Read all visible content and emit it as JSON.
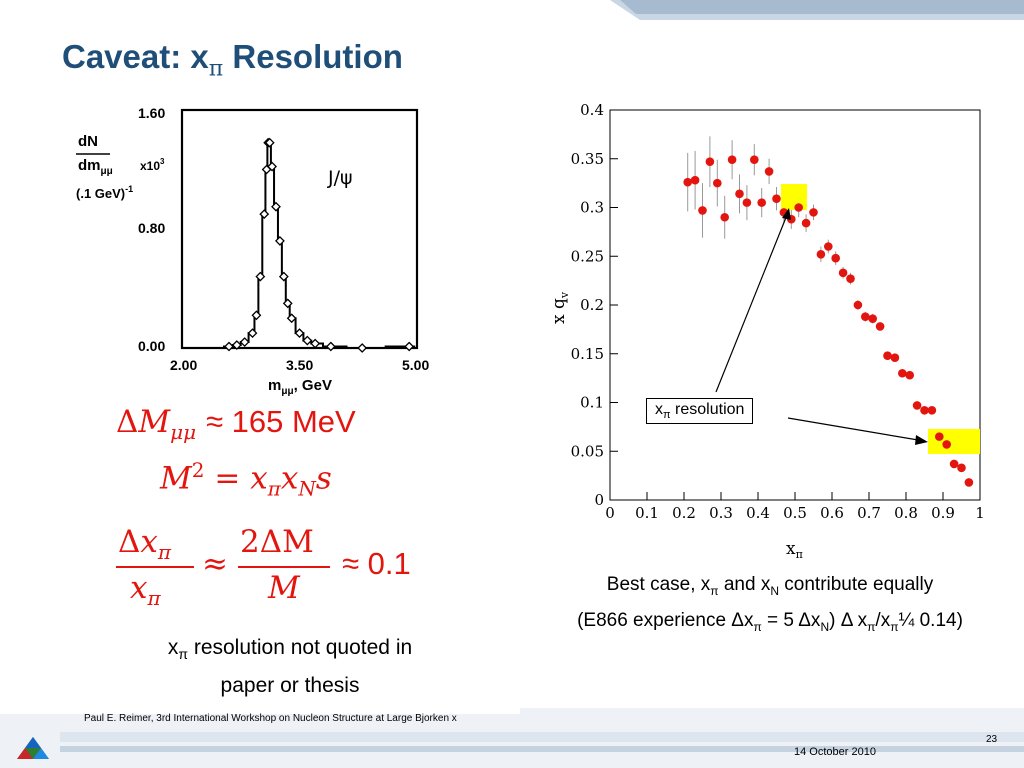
{
  "title": {
    "prefix": "Caveat:  x",
    "sub": "π",
    "suffix": " Resolution"
  },
  "left_plot": {
    "y_ticks": [
      "1.60",
      "0.80",
      "0.00"
    ],
    "x_ticks": [
      "2.00",
      "3.50",
      "5.00"
    ],
    "y_label_1": "dN",
    "y_label_2": "dm",
    "y_label_2_sub": "μμ",
    "y_label_3": "(.1  GeV)",
    "y_label_3_sup": "-1",
    "y_scale": "x10",
    "y_scale_sup": "3",
    "x_label": "m",
    "x_label_sub": "μμ",
    "x_label_unit": ",  GeV",
    "annotation": "J/ψ"
  },
  "left_chart_data": {
    "type": "line",
    "x": [
      2.6,
      2.7,
      2.8,
      2.9,
      2.95,
      3.0,
      3.05,
      3.08,
      3.1,
      3.12,
      3.15,
      3.2,
      3.25,
      3.3,
      3.35,
      3.4,
      3.5,
      3.6,
      3.7,
      3.9,
      4.3,
      4.9
    ],
    "values": [
      0.01,
      0.02,
      0.04,
      0.1,
      0.22,
      0.48,
      0.9,
      1.2,
      1.38,
      1.38,
      1.22,
      0.95,
      0.72,
      0.48,
      0.3,
      0.2,
      0.1,
      0.05,
      0.03,
      0.01,
      0.0,
      0.01
    ],
    "xlim": [
      2.0,
      5.0
    ],
    "ylim": [
      0.0,
      1.6
    ]
  },
  "equations": {
    "eq1_delta": "Δ",
    "eq1_M": "M",
    "eq1_sub": "μμ",
    "eq1_rhs": "≈ 165 MeV",
    "eq2_lhs": "M",
    "eq2_sup": "2",
    "eq2_eq": "=",
    "eq2_x1": "x",
    "eq2_x1_sub": "π",
    "eq2_x2": "x",
    "eq2_x2_sub": "N",
    "eq2_s": "s",
    "eq3_num_delta": "Δ",
    "eq3_num": "x",
    "eq3_num_sub": "π",
    "eq3_den": "x",
    "eq3_den_sub": "π",
    "eq3_approx1": "≈",
    "eq3_num2": "2ΔM",
    "eq3_den2": "M",
    "eq3_rhs": "≈ 0.1"
  },
  "left_note": {
    "line1_prefix": "x",
    "line1_sub": "π",
    "line1_suffix": " resolution not quoted in",
    "line2": "paper or thesis"
  },
  "chart_data": {
    "type": "scatter",
    "x": [
      0.21,
      0.23,
      0.25,
      0.27,
      0.29,
      0.31,
      0.33,
      0.35,
      0.37,
      0.39,
      0.41,
      0.43,
      0.45,
      0.47,
      0.49,
      0.51,
      0.53,
      0.55,
      0.57,
      0.59,
      0.61,
      0.63,
      0.65,
      0.67,
      0.69,
      0.71,
      0.73,
      0.75,
      0.77,
      0.79,
      0.81,
      0.83,
      0.85,
      0.87,
      0.89,
      0.91,
      0.93,
      0.95,
      0.97
    ],
    "y": [
      0.326,
      0.328,
      0.297,
      0.347,
      0.325,
      0.29,
      0.349,
      0.314,
      0.305,
      0.349,
      0.305,
      0.337,
      0.309,
      0.295,
      0.288,
      0.3,
      0.284,
      0.295,
      0.252,
      0.26,
      0.248,
      0.233,
      0.227,
      0.2,
      0.188,
      0.186,
      0.178,
      0.148,
      0.146,
      0.13,
      0.128,
      0.097,
      0.092,
      0.092,
      0.065,
      0.057,
      0.037,
      0.033,
      0.018
    ],
    "err": [
      0.03,
      0.03,
      0.028,
      0.026,
      0.024,
      0.022,
      0.02,
      0.02,
      0.018,
      0.016,
      0.015,
      0.013,
      0.012,
      0.011,
      0.01,
      0.01,
      0.009,
      0.008,
      0.008,
      0.007,
      0.007,
      0.006,
      0.006,
      0.005,
      0.005,
      0.005,
      0.004,
      0.004,
      0.004,
      0.004,
      0.003,
      0.003,
      0.003,
      0.003,
      0.003,
      0.002,
      0.002,
      0.002,
      0.002
    ],
    "xlabel": "x",
    "xlabel_sub": "π",
    "ylabel": "x q",
    "ylabel_sub": "v",
    "xlim": [
      0,
      1
    ],
    "ylim": [
      0,
      0.4
    ],
    "x_ticks": [
      "0",
      "0.1",
      "0.2",
      "0.3",
      "0.4",
      "0.5",
      "0.6",
      "0.7",
      "0.8",
      "0.9",
      "1"
    ],
    "y_ticks": [
      "0",
      "0.05",
      "0.1",
      "0.15",
      "0.2",
      "0.25",
      "0.3",
      "0.35",
      "0.4"
    ],
    "point_color": "#e3150f",
    "error_color": "#999999",
    "highlight_color": "#ffff00"
  },
  "callout": {
    "prefix": "x",
    "sub": "π",
    "suffix": " resolution"
  },
  "caption": {
    "line1_a": "Best case, x",
    "line1_b": "π",
    "line1_c": " and x",
    "line1_d": "N",
    "line1_e": " contribute equally",
    "line2_a": "(E866 experience ",
    "line2_b": "Δx",
    "line2_c": "π",
    "line2_d": " = 5 ",
    "line2_e": "Δx",
    "line2_f": "N",
    "line2_g": ") ",
    "line2_h": "Δ x",
    "line2_i": "π",
    "line2_j": "/x",
    "line2_k": "π",
    "line2_l": "¼ 0.14)"
  },
  "footer": {
    "credit": "Paul E. Reimer, 3rd International Workshop on Nucleon Structure at Large Bjorken x",
    "page_number": "23",
    "date": "14 October 2010"
  },
  "colors": {
    "title": "#1f4e79",
    "equation": "#e3150f",
    "band_light": "#dbe4ee",
    "band_dark": "#9fb5cc"
  }
}
